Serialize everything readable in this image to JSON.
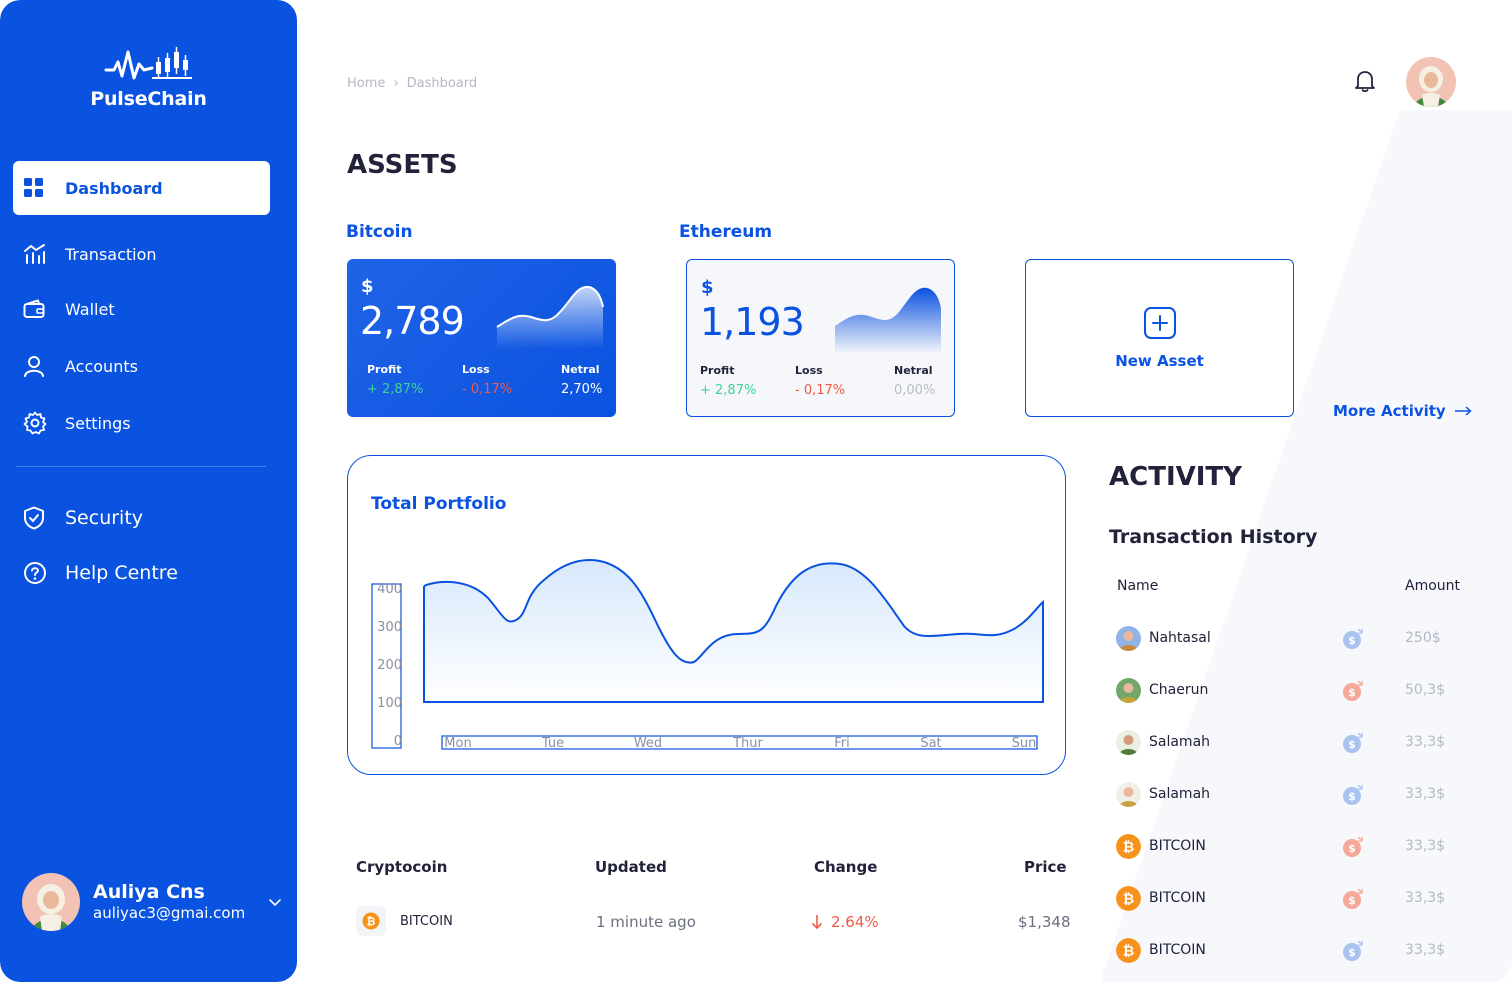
{
  "brand": {
    "name": "PulseChain"
  },
  "sidebar": {
    "items": [
      {
        "label": "Dashboard",
        "icon": "grid-icon"
      },
      {
        "label": "Transaction",
        "icon": "chart-icon"
      },
      {
        "label": "Wallet",
        "icon": "wallet-icon"
      },
      {
        "label": "Accounts",
        "icon": "user-icon"
      },
      {
        "label": "Settings",
        "icon": "gear-icon"
      },
      {
        "label": "Security",
        "icon": "shield-icon"
      },
      {
        "label": "Help Centre",
        "icon": "help-icon"
      }
    ],
    "profile": {
      "name": "Auliya Cns",
      "email": "auliyac3@gmai.com"
    }
  },
  "header": {
    "breadcrumb": [
      "Home",
      "Dashboard"
    ]
  },
  "assets": {
    "title": "ASSETS",
    "bitcoin": {
      "label": "Bitcoin",
      "currency": "$",
      "amount": "2,789",
      "profit_label": "Profit",
      "profit": "+ 2,87%",
      "loss_label": "Loss",
      "loss": "- 0,17%",
      "netral_label": "Netral",
      "netral": "2,70%"
    },
    "ethereum": {
      "label": "Ethereum",
      "currency": "$",
      "amount": "1,193",
      "profit_label": "Profit",
      "profit": "+ 2,87%",
      "loss_label": "Loss",
      "loss": "- 0,17%",
      "netral_label": "Netral",
      "netral": "0,00%"
    },
    "new_asset_label": "New Asset",
    "more_activity_label": "More Activity"
  },
  "portfolio": {
    "title": "Total Portfolio",
    "chart_data": {
      "type": "area",
      "categories": [
        "Mon",
        "Tue",
        "Wed",
        "Thur",
        "Fri",
        "Sat",
        "Sun"
      ],
      "yticks": [
        "400",
        "300",
        "200",
        "100",
        "0"
      ],
      "ylim": [
        0,
        400
      ]
    }
  },
  "crypto_table": {
    "headers": [
      "Cryptocoin",
      "Updated",
      "Change",
      "Price"
    ],
    "rows": [
      {
        "coin": "BITCOIN",
        "updated": "1 minute ago",
        "change": "2.64%",
        "price": "$1,348"
      }
    ]
  },
  "activity": {
    "title": "ACTIVITY",
    "subtitle": "Transaction History",
    "col_name": "Name",
    "col_amount": "Amount",
    "rows": [
      {
        "name": "Nahtasal",
        "amount": "250$",
        "dir": "in"
      },
      {
        "name": "Chaerun",
        "amount": "50,3$",
        "dir": "out"
      },
      {
        "name": "Salamah",
        "amount": "33,3$",
        "dir": "in"
      },
      {
        "name": "Salamah",
        "amount": "33,3$",
        "dir": "in"
      },
      {
        "name": "BITCOIN",
        "amount": "33,3$",
        "dir": "out"
      },
      {
        "name": "BITCOIN",
        "amount": "33,3$",
        "dir": "out"
      },
      {
        "name": "BITCOIN",
        "amount": "33,3$",
        "dir": "in"
      }
    ]
  },
  "colors": {
    "primary": "#0a52e0",
    "profit": "#3ed39a",
    "loss": "#f05a46",
    "bitcoin": "#f7931a"
  }
}
